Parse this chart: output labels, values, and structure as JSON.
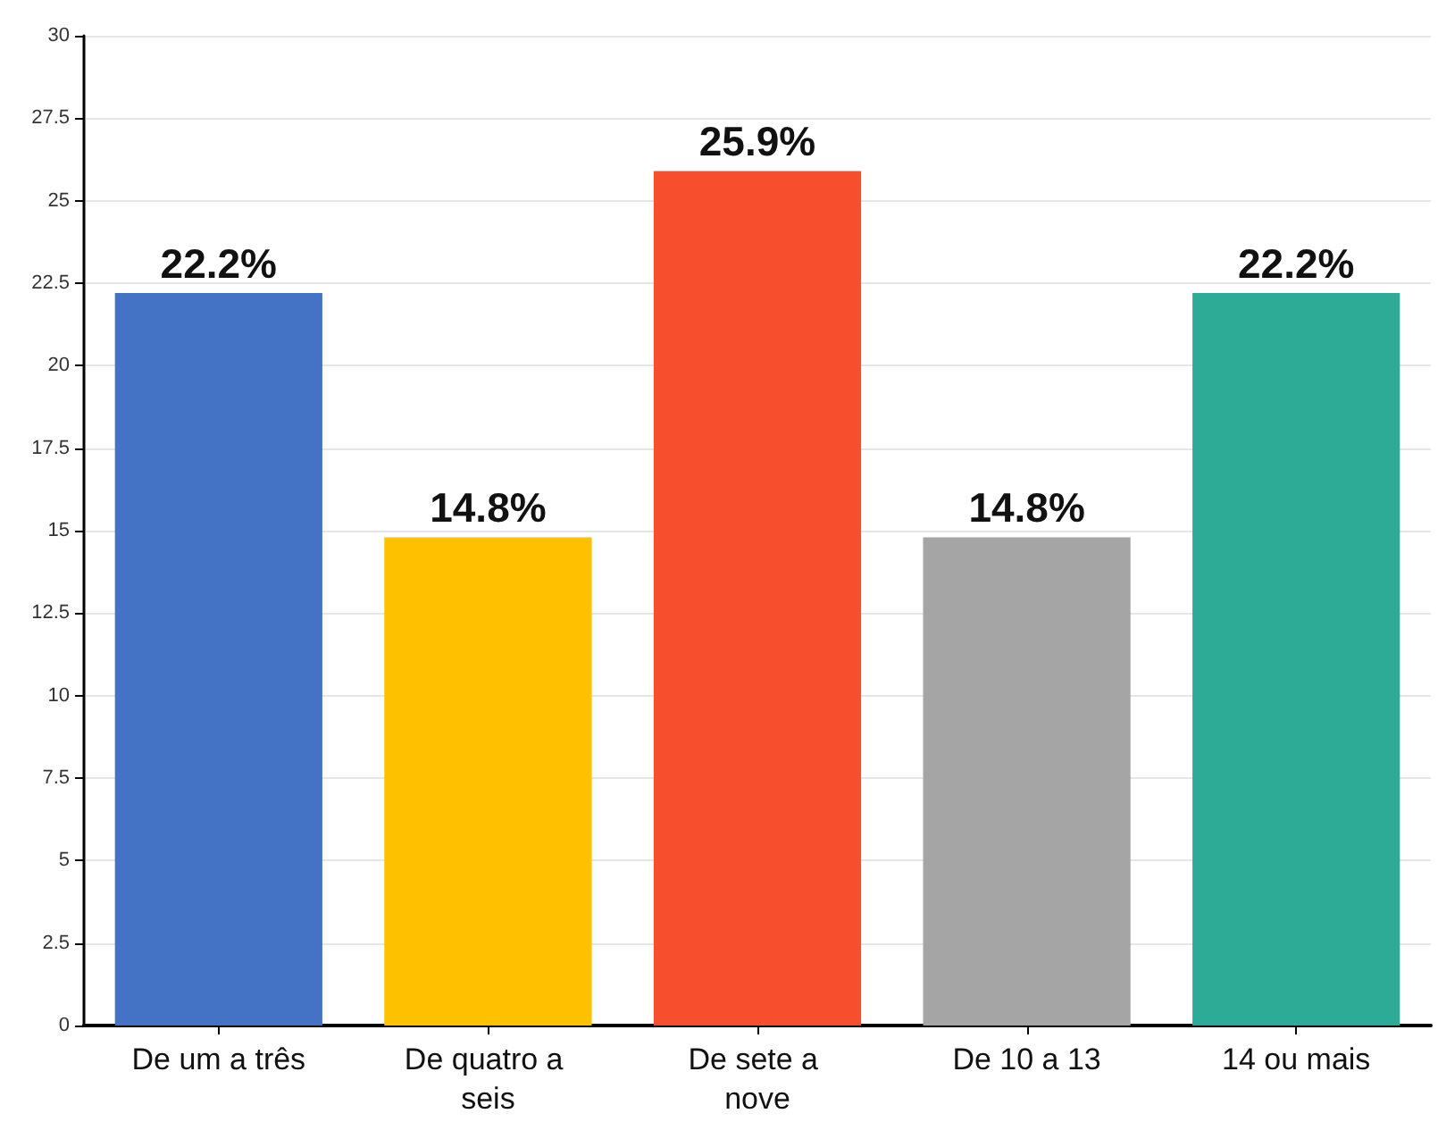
{
  "chart_data": {
    "type": "bar",
    "categories": [
      "De um a três",
      "De quatro a seis",
      "De sete a nove",
      "De 10 a 13",
      "14 ou mais"
    ],
    "values": [
      22.2,
      14.8,
      25.9,
      14.8,
      22.2
    ],
    "colors": [
      "#4472c4",
      "#ffc000",
      "#f74f2d",
      "#a5a5a5",
      "#2eab97"
    ],
    "value_labels": [
      "22.2%",
      "14.8%",
      "25.9%",
      "14.8%",
      "22.2%"
    ],
    "ylim": [
      0,
      30
    ],
    "yticks": [
      0,
      2.5,
      5,
      7.5,
      10,
      12.5,
      15,
      17.5,
      20,
      22.5,
      25,
      27.5,
      30
    ],
    "grid": "y"
  }
}
